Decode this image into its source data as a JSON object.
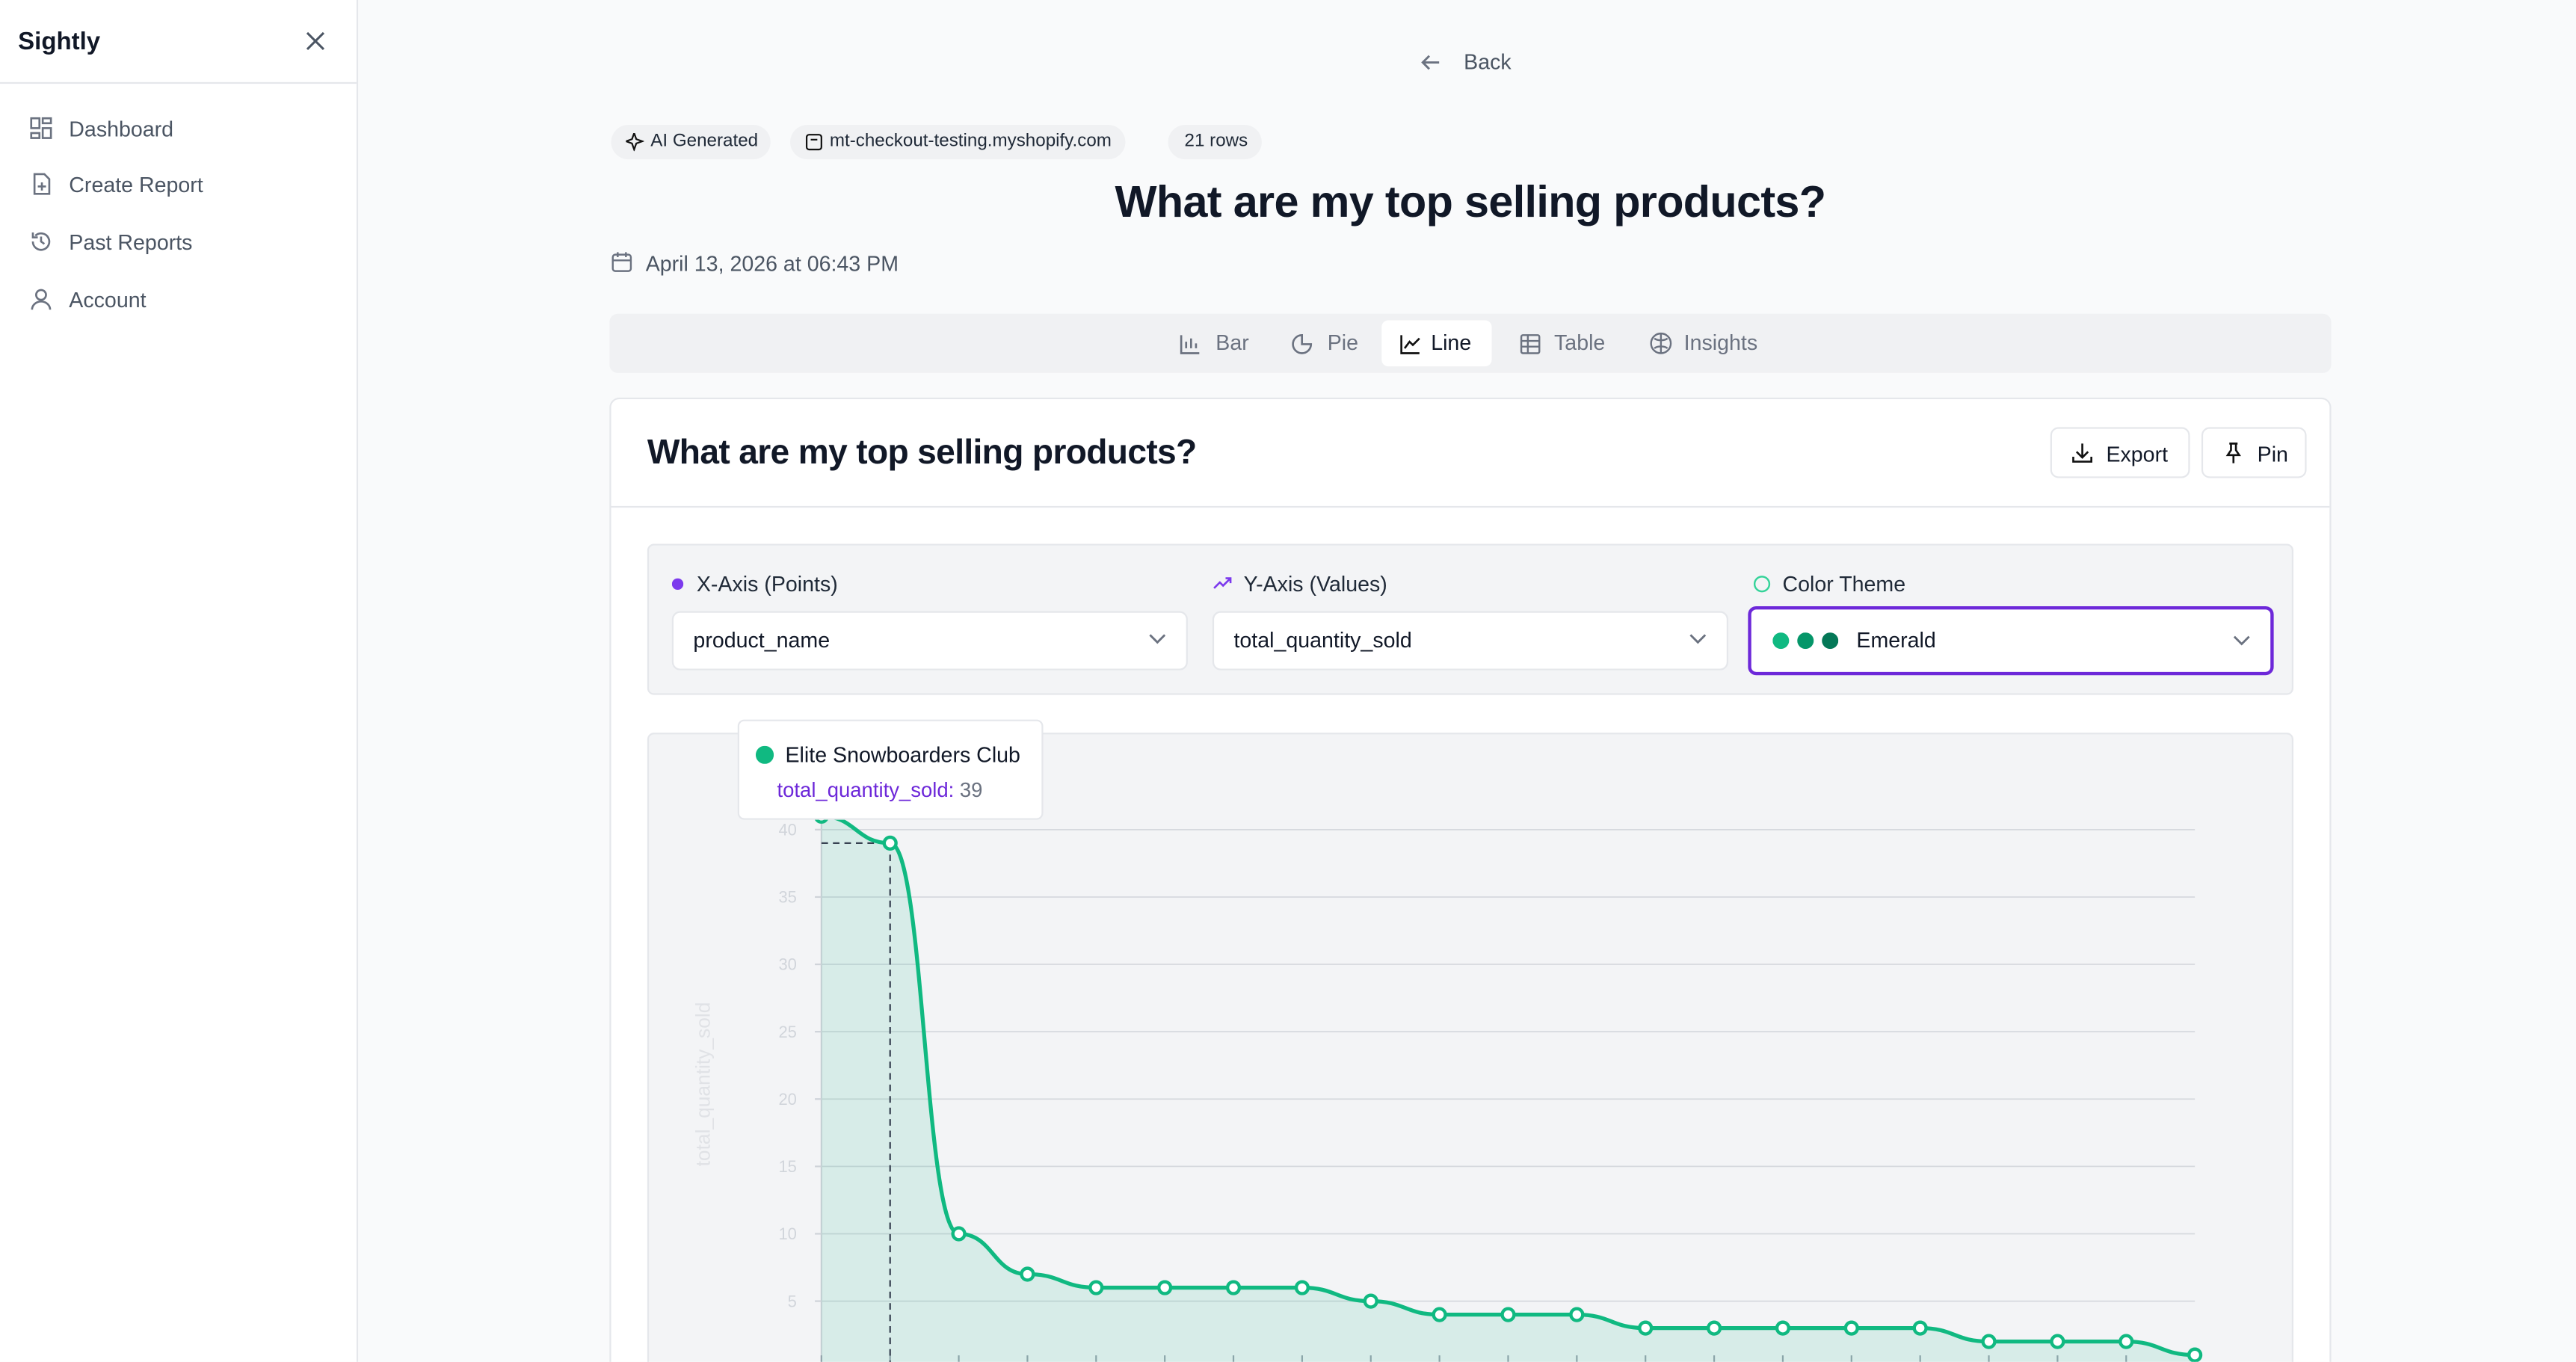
{
  "sidebar": {
    "brand": "Sightly",
    "nav": [
      "Dashboard",
      "Create Report",
      "Past Reports",
      "Account"
    ]
  },
  "back": "Back",
  "badges": [
    "AI Generated",
    "mt-checkout-testing.myshopify.com",
    "21 rows"
  ],
  "title": "What are my top selling products?",
  "date": "April 13, 2026 at 06:43 PM",
  "tabs": [
    "Bar",
    "Pie",
    "Line",
    "Table",
    "Insights"
  ],
  "card": {
    "export": "Export",
    "pin": "Pin",
    "x_axis": {
      "label": "X-Axis (Points)",
      "value": "product_name"
    },
    "y_axis": {
      "label": "Y-Axis (Values)",
      "value": "total_quantity_sold"
    },
    "color_theme": {
      "label": "Color Theme",
      "value": "Emerald"
    }
  },
  "chart_data": {
    "type": "line",
    "y_label": "total_quantity_sold",
    "color": "#10b981",
    "grid": true,
    "categories": [
      null,
      "Elite Snowboarders Club",
      null,
      null,
      null,
      null,
      null,
      null,
      null,
      null,
      null,
      null,
      null,
      null,
      null,
      null,
      null,
      null,
      null,
      null,
      null
    ],
    "values": [
      41,
      39,
      10,
      7,
      6,
      6,
      6,
      6,
      5,
      4,
      4,
      4,
      3,
      3,
      3,
      3,
      3,
      2,
      2,
      2,
      1
    ],
    "ylim": [
      0,
      44
    ],
    "yticks": [
      5,
      10,
      15,
      20,
      25,
      30,
      35,
      40
    ]
  }
}
